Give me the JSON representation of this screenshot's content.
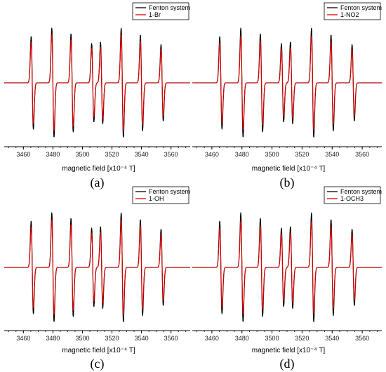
{
  "chart_data": [
    {
      "type": "line",
      "panel_label": "(a)",
      "xlabel": "magnetic field [x10⁻⁴ T]",
      "xticks": [
        3460,
        3480,
        3500,
        3520,
        3540,
        3560
      ],
      "xlim": [
        3447,
        3573
      ],
      "legend_position": "top-right",
      "series": [
        {
          "name": "Fenton system",
          "color": "#000000",
          "scale": 1.0
        },
        {
          "name": "1-Br",
          "color": "#e00000",
          "scale": 0.88
        }
      ],
      "line_centers": [
        3466,
        3480,
        3493,
        3507,
        3513,
        3527,
        3540,
        3554
      ],
      "line_amplitudes": [
        0.85,
        1.0,
        0.9,
        0.72,
        0.75,
        1.0,
        0.88,
        0.7
      ]
    },
    {
      "type": "line",
      "panel_label": "(b)",
      "xlabel": "magnetic field [x10⁻⁴ T]",
      "xticks": [
        3460,
        3480,
        3500,
        3520,
        3540,
        3560
      ],
      "xlim": [
        3447,
        3573
      ],
      "legend_position": "top-right",
      "series": [
        {
          "name": "Fenton system",
          "color": "#000000",
          "scale": 1.0
        },
        {
          "name": "1-NO2",
          "color": "#e00000",
          "scale": 0.86
        }
      ],
      "line_centers": [
        3466,
        3480,
        3493,
        3507,
        3513,
        3527,
        3540,
        3554
      ],
      "line_amplitudes": [
        0.85,
        1.0,
        0.9,
        0.72,
        0.75,
        1.0,
        0.88,
        0.7
      ]
    },
    {
      "type": "line",
      "panel_label": "(c)",
      "xlabel": "magnetic field [x10⁻⁴ T]",
      "xticks": [
        3460,
        3480,
        3500,
        3520,
        3540,
        3560
      ],
      "xlim": [
        3447,
        3573
      ],
      "legend_position": "top-right",
      "series": [
        {
          "name": "Fenton system",
          "color": "#000000",
          "scale": 1.0
        },
        {
          "name": "1-OH",
          "color": "#e00000",
          "scale": 0.87
        }
      ],
      "line_centers": [
        3466,
        3480,
        3493,
        3507,
        3513,
        3527,
        3540,
        3554
      ],
      "line_amplitudes": [
        0.85,
        1.0,
        0.9,
        0.72,
        0.75,
        1.0,
        0.88,
        0.7
      ]
    },
    {
      "type": "line",
      "panel_label": "(d)",
      "xlabel": "magnetic field [x10⁻⁴ T]",
      "xticks": [
        3460,
        3480,
        3500,
        3520,
        3540,
        3560
      ],
      "xlim": [
        3447,
        3573
      ],
      "legend_position": "top-right",
      "series": [
        {
          "name": "Fenton system",
          "color": "#000000",
          "scale": 1.0
        },
        {
          "name": "1-OCH3",
          "color": "#e00000",
          "scale": 0.85
        }
      ],
      "line_centers": [
        3466,
        3480,
        3493,
        3507,
        3513,
        3527,
        3540,
        3554
      ],
      "line_amplitudes": [
        0.85,
        1.0,
        0.9,
        0.72,
        0.75,
        1.0,
        0.88,
        0.7
      ]
    }
  ]
}
